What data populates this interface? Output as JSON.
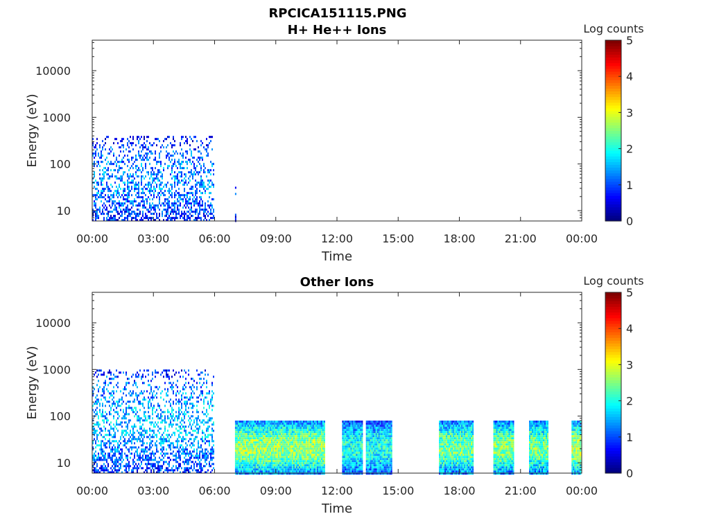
{
  "figure_title": "RPCICA151115.PNG",
  "chart_data": [
    {
      "type": "heatmap",
      "title": "H+ He++ Ions",
      "xlabel": "Time",
      "ylabel": "Energy (eV)",
      "y_scale": "log",
      "ylim": [
        6,
        45000
      ],
      "x_hours": [
        0,
        24
      ],
      "xtick_labels": [
        "00:00",
        "03:00",
        "06:00",
        "09:00",
        "12:00",
        "15:00",
        "18:00",
        "21:00",
        "00:00"
      ],
      "ytick_values": [
        10,
        100,
        1000,
        10000
      ],
      "ytick_labels": [
        "10",
        "100",
        "1000",
        "10000"
      ],
      "colorbar": {
        "label": "Log counts",
        "range": [
          0,
          5
        ],
        "tick_labels": [
          "0",
          "1",
          "2",
          "3",
          "4",
          "5"
        ]
      },
      "data_blocks": [
        {
          "t_start": "00:00",
          "t_end": "05:55",
          "emin": 6,
          "emax": 400,
          "level": 1.2
        },
        {
          "t_start": "07:00",
          "t_end": "07:02",
          "emin": 6,
          "emax": 40,
          "level": 0.8
        }
      ]
    },
    {
      "type": "heatmap",
      "title": "Other Ions",
      "xlabel": "Time",
      "ylabel": "Energy (eV)",
      "y_scale": "log",
      "ylim": [
        6,
        45000
      ],
      "x_hours": [
        0,
        24
      ],
      "xtick_labels": [
        "00:00",
        "03:00",
        "06:00",
        "09:00",
        "12:00",
        "15:00",
        "18:00",
        "21:00",
        "00:00"
      ],
      "ytick_values": [
        10,
        100,
        1000,
        10000
      ],
      "ytick_labels": [
        "10",
        "100",
        "1000",
        "10000"
      ],
      "colorbar": {
        "label": "Log counts",
        "range": [
          0,
          5
        ],
        "tick_labels": [
          "0",
          "1",
          "2",
          "3",
          "4",
          "5"
        ]
      },
      "data_blocks": [
        {
          "t_start": "00:00",
          "t_end": "05:55",
          "emin": 6,
          "emax": 1000,
          "level": 1.4
        },
        {
          "t_start": "07:00",
          "t_end": "11:25",
          "emin": 6,
          "emax": 80,
          "level": 2.4
        },
        {
          "t_start": "12:15",
          "t_end": "13:15",
          "emin": 6,
          "emax": 80,
          "level": 1.8
        },
        {
          "t_start": "13:25",
          "t_end": "14:40",
          "emin": 6,
          "emax": 80,
          "level": 1.8
        },
        {
          "t_start": "17:00",
          "t_end": "18:40",
          "emin": 6,
          "emax": 80,
          "level": 2.2
        },
        {
          "t_start": "19:40",
          "t_end": "20:40",
          "emin": 6,
          "emax": 80,
          "level": 2.3
        },
        {
          "t_start": "21:25",
          "t_end": "22:20",
          "emin": 6,
          "emax": 80,
          "level": 2.2
        },
        {
          "t_start": "23:30",
          "t_end": "23:55",
          "emin": 6,
          "emax": 80,
          "level": 2.5
        }
      ]
    }
  ]
}
